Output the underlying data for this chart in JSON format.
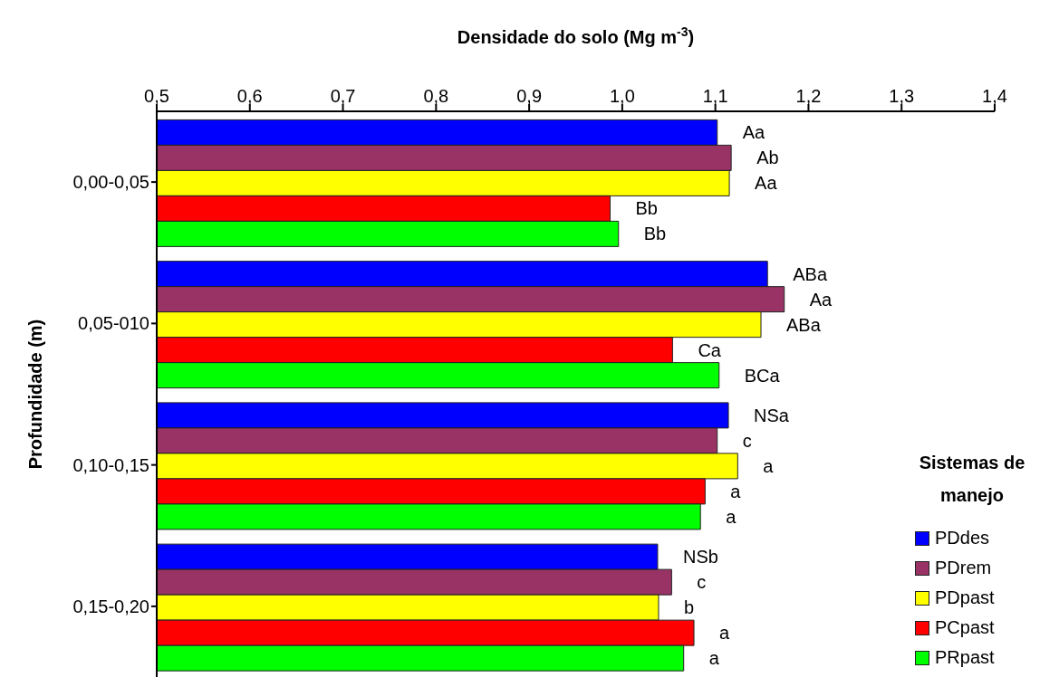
{
  "chart_data": {
    "type": "bar",
    "orientation": "horizontal",
    "xlabel": "Densidade do solo (Mg m$^{-3}$)",
    "ylabel": "Profundidade (m)",
    "legend_title": "Sistemas de manejo",
    "categories": [
      "0,00-0,05",
      "0,05-010",
      "0,10-0,15",
      "0,15-0,20"
    ],
    "series": [
      {
        "name": "PDdes",
        "color": "#0000ff",
        "values": [
          1.102,
          1.156,
          1.114,
          1.038
        ],
        "value_labels": [
          "Aa",
          "ABa",
          "NSa",
          "NSb"
        ]
      },
      {
        "name": "PDrem",
        "color": "#993366",
        "values": [
          1.117,
          1.174,
          1.102,
          1.053
        ],
        "value_labels": [
          "Ab",
          "Aa",
          "c",
          "c"
        ]
      },
      {
        "name": "PDpast",
        "color": "#ffff00",
        "values": [
          1.115,
          1.149,
          1.124,
          1.039
        ],
        "value_labels": [
          "Aa",
          "ABa",
          "a",
          "b"
        ]
      },
      {
        "name": "PCpast",
        "color": "#ff0000",
        "values": [
          0.987,
          1.054,
          1.089,
          1.077
        ],
        "value_labels": [
          "Bb",
          "Ca",
          "a",
          "a"
        ]
      },
      {
        "name": "PRpast",
        "color": "#00ff00",
        "values": [
          0.996,
          1.104,
          1.084,
          1.066
        ],
        "value_labels": [
          "Bb",
          "BCa",
          "a",
          "a"
        ]
      }
    ],
    "xlim": [
      0.5,
      1.4
    ],
    "xticks": [
      {
        "value": 0.5,
        "label": "0,5"
      },
      {
        "value": 0.6,
        "label": "0,6"
      },
      {
        "value": 0.7,
        "label": "0,7"
      },
      {
        "value": 0.8,
        "label": "0,8"
      },
      {
        "value": 0.9,
        "label": "0,9"
      },
      {
        "value": 1.0,
        "label": "1,0"
      },
      {
        "value": 1.1,
        "label": "1,1"
      },
      {
        "value": 1.2,
        "label": "1,2"
      },
      {
        "value": 1.3,
        "label": "1,3"
      },
      {
        "value": 1.4,
        "label": "1,4"
      }
    ],
    "grid": false,
    "legend": "bottom right"
  }
}
